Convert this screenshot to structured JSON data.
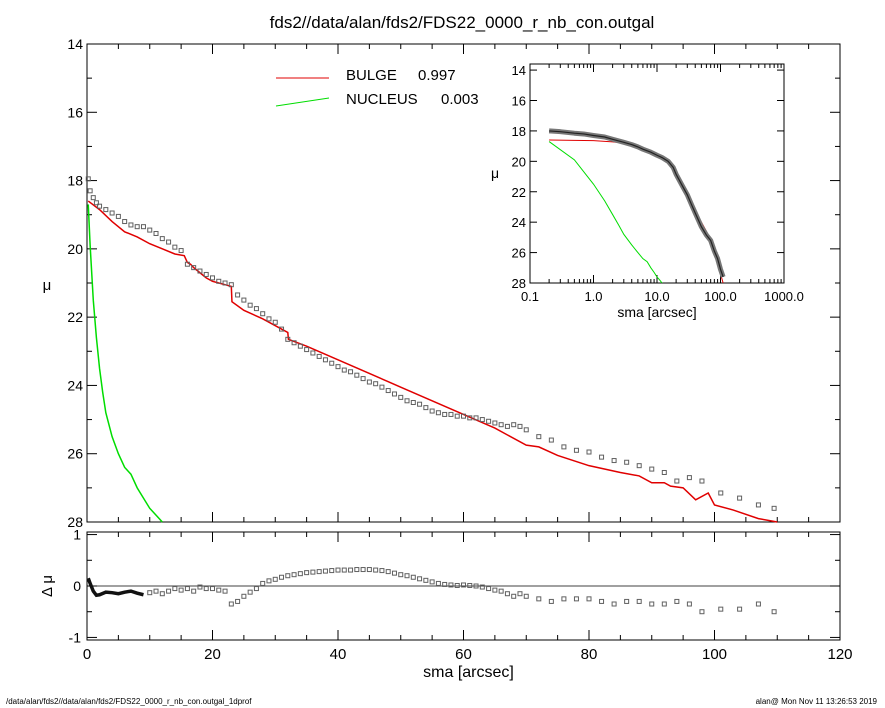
{
  "title": "fds2//data/alan/fds2/FDS22_0000_r_nb_con.outgal",
  "footer": {
    "left": "/data/alan/fds2//data/alan/fds2/FDS22_0000_r_nb_con.outgal_1dprof",
    "right": "alan@  Mon Nov 11 13:26:53 2019"
  },
  "colors": {
    "bulge": "#e00000",
    "nucleus": "#00dd00",
    "data": "#606060",
    "axis": "#000000"
  },
  "chart_data": [
    {
      "type": "line",
      "panel": "main",
      "xlabel": "sma [arcsec]",
      "ylabel": "μ",
      "xlim": [
        0,
        120
      ],
      "ylim": [
        28,
        14
      ],
      "y_inverted": true,
      "xticks": [
        "0",
        "20",
        "40",
        "60",
        "80",
        "100",
        "120"
      ],
      "yticks": [
        "14",
        "16",
        "18",
        "20",
        "22",
        "24",
        "26",
        "28"
      ],
      "legend": [
        {
          "label": "BULGE",
          "value": "0.997",
          "color": "#e00000"
        },
        {
          "label": "NUCLEUS",
          "value": "0.003",
          "color": "#00dd00"
        }
      ],
      "series": [
        {
          "name": "BULGE",
          "x": [
            0.2,
            2,
            4,
            6,
            8,
            10,
            12,
            14,
            15.5,
            16,
            16.5,
            17,
            18,
            19,
            20,
            21,
            22,
            23,
            23.1,
            25,
            28,
            31,
            32,
            32.1,
            35,
            40,
            45,
            50,
            55,
            60,
            65,
            70,
            72,
            75,
            80,
            85,
            88,
            90,
            92,
            93,
            95,
            97,
            99,
            100,
            103,
            107,
            110
          ],
          "y": [
            18.6,
            18.85,
            19.2,
            19.5,
            19.65,
            19.85,
            20.0,
            20.15,
            20.2,
            20.4,
            20.45,
            20.55,
            20.7,
            20.85,
            20.95,
            21.0,
            21.05,
            21.1,
            21.55,
            21.8,
            22.05,
            22.35,
            22.45,
            22.65,
            22.85,
            23.25,
            23.65,
            24.05,
            24.45,
            24.85,
            25.25,
            25.75,
            25.8,
            26.05,
            26.35,
            26.55,
            26.65,
            26.85,
            26.85,
            26.95,
            27.0,
            27.35,
            27.15,
            27.5,
            27.65,
            27.9,
            28.0
          ]
        },
        {
          "name": "NUCLEUS",
          "x": [
            0.2,
            0.5,
            1,
            1.5,
            2,
            2.5,
            3,
            4,
            5,
            6,
            7,
            8,
            9,
            10,
            11,
            12
          ],
          "y": [
            18.7,
            19.9,
            21.5,
            22.6,
            23.5,
            24.2,
            24.8,
            25.5,
            26.0,
            26.4,
            26.6,
            27.0,
            27.3,
            27.6,
            27.8,
            28.0
          ]
        },
        {
          "name": "data",
          "x": [
            0.2,
            0.5,
            1,
            1.5,
            2,
            3,
            4,
            5,
            6,
            7,
            8,
            9,
            10,
            11,
            12,
            13,
            14,
            15,
            16,
            17,
            18,
            19,
            20,
            21,
            22,
            23,
            24,
            25,
            26,
            27,
            28,
            29,
            30,
            31,
            32,
            33,
            34,
            35,
            36,
            37,
            38,
            39,
            40,
            41,
            42,
            43,
            44,
            45,
            46,
            47,
            48,
            49,
            50,
            51,
            52,
            53,
            54,
            55,
            56,
            57,
            58,
            59,
            60,
            61,
            62,
            63,
            64,
            65,
            66,
            67,
            68,
            69,
            70,
            72,
            74,
            76,
            78,
            80,
            82,
            84,
            86,
            88,
            90,
            92,
            94,
            96,
            98,
            101,
            104,
            107,
            109.5
          ],
          "y": [
            17.95,
            18.3,
            18.5,
            18.65,
            18.75,
            18.85,
            18.95,
            19.05,
            19.2,
            19.3,
            19.35,
            19.35,
            19.45,
            19.55,
            19.7,
            19.8,
            19.95,
            20.05,
            20.45,
            20.55,
            20.65,
            20.75,
            20.85,
            20.95,
            21.0,
            21.05,
            21.35,
            21.5,
            21.65,
            21.75,
            21.9,
            22.05,
            22.15,
            22.35,
            22.65,
            22.75,
            22.85,
            22.95,
            23.05,
            23.15,
            23.25,
            23.35,
            23.45,
            23.55,
            23.6,
            23.7,
            23.8,
            23.9,
            23.95,
            24.05,
            24.15,
            24.25,
            24.35,
            24.45,
            24.5,
            24.55,
            24.65,
            24.75,
            24.8,
            24.85,
            24.85,
            24.9,
            24.9,
            24.95,
            24.95,
            25.0,
            25.05,
            25.1,
            25.15,
            25.2,
            25.15,
            25.2,
            25.3,
            25.5,
            25.6,
            25.8,
            25.9,
            25.95,
            26.1,
            26.2,
            26.25,
            26.35,
            26.45,
            26.55,
            26.8,
            26.7,
            26.8,
            27.15,
            27.3,
            27.5,
            27.6
          ]
        }
      ]
    },
    {
      "type": "line",
      "panel": "residual",
      "xlabel": "sma [arcsec]",
      "ylabel": "Δ μ",
      "xlim": [
        0,
        120
      ],
      "ylim": [
        -1,
        1
      ],
      "yticks": [
        "-1",
        "0",
        "1"
      ],
      "reference_line": 0,
      "series": [
        {
          "name": "residual",
          "x": [
            0.2,
            0.5,
            1,
            1.5,
            2,
            3,
            4,
            5,
            6,
            7,
            8,
            9,
            10,
            11,
            12,
            13,
            14,
            15,
            16,
            17,
            18,
            19,
            20,
            21,
            22,
            23,
            24,
            25,
            26,
            27,
            28,
            29,
            30,
            31,
            32,
            33,
            34,
            35,
            36,
            37,
            38,
            39,
            40,
            41,
            42,
            43,
            44,
            45,
            46,
            47,
            48,
            49,
            50,
            51,
            52,
            53,
            54,
            55,
            56,
            57,
            58,
            59,
            60,
            61,
            62,
            63,
            64,
            65,
            66,
            67,
            68,
            69,
            70,
            72,
            74,
            76,
            78,
            80,
            82,
            84,
            86,
            88,
            90,
            92,
            94,
            96,
            98,
            101,
            104,
            107,
            109.5
          ],
          "y": [
            0.15,
            0.05,
            -0.1,
            -0.18,
            -0.17,
            -0.12,
            -0.13,
            -0.15,
            -0.12,
            -0.1,
            -0.14,
            -0.17,
            -0.13,
            -0.1,
            -0.15,
            -0.1,
            -0.05,
            -0.08,
            -0.05,
            -0.1,
            -0.02,
            -0.05,
            -0.05,
            -0.08,
            -0.1,
            -0.35,
            -0.3,
            -0.2,
            -0.12,
            -0.05,
            0.05,
            0.1,
            0.13,
            0.17,
            0.2,
            0.22,
            0.24,
            0.26,
            0.27,
            0.28,
            0.29,
            0.3,
            0.31,
            0.31,
            0.31,
            0.32,
            0.32,
            0.32,
            0.31,
            0.3,
            0.28,
            0.25,
            0.22,
            0.2,
            0.17,
            0.14,
            0.11,
            0.08,
            0.05,
            0.03,
            0.02,
            0.01,
            0.02,
            0.01,
            0.0,
            -0.02,
            -0.05,
            -0.08,
            -0.1,
            -0.15,
            -0.2,
            -0.15,
            -0.2,
            -0.25,
            -0.3,
            -0.25,
            -0.25,
            -0.25,
            -0.3,
            -0.35,
            -0.3,
            -0.3,
            -0.35,
            -0.35,
            -0.3,
            -0.35,
            -0.5,
            -0.45,
            -0.45,
            -0.35,
            -0.5
          ]
        }
      ]
    },
    {
      "type": "line",
      "panel": "inset",
      "xlabel": "sma [arcsec]",
      "ylabel": "μ",
      "xscale": "log",
      "xlim": [
        0.1,
        1000
      ],
      "ylim": [
        28,
        14
      ],
      "y_inverted": true,
      "xticks": [
        "0.1",
        "1.0",
        "10.0",
        "100.0",
        "1000.0"
      ],
      "yticks": [
        "14",
        "16",
        "18",
        "20",
        "22",
        "24",
        "26",
        "28"
      ],
      "series": [
        {
          "name": "BULGE",
          "x": [
            0.2,
            0.5,
            1,
            2,
            3,
            5,
            8,
            10,
            15,
            20,
            30,
            40,
            50,
            60,
            70,
            80,
            90,
            100,
            110
          ],
          "y": [
            18.6,
            18.62,
            18.64,
            18.72,
            18.8,
            19.0,
            19.3,
            19.55,
            20.0,
            20.95,
            22.3,
            23.3,
            24.0,
            24.6,
            25.3,
            26.0,
            26.7,
            27.4,
            28.0
          ]
        },
        {
          "name": "NUCLEUS",
          "x": [
            0.2,
            0.5,
            1,
            1.5,
            2,
            2.5,
            3,
            4,
            5,
            6,
            7,
            8,
            9,
            10,
            11,
            12
          ],
          "y": [
            18.7,
            19.9,
            21.5,
            22.6,
            23.5,
            24.2,
            24.8,
            25.5,
            26.0,
            26.4,
            26.6,
            27.0,
            27.3,
            27.6,
            27.8,
            28.0
          ]
        },
        {
          "name": "data",
          "x": [
            0.2,
            0.3,
            0.5,
            0.7,
            1,
            1.5,
            2,
            3,
            4,
            5,
            6,
            8,
            10,
            12,
            15,
            18,
            20,
            25,
            30,
            35,
            40,
            50,
            60,
            70,
            80,
            90,
            100,
            110
          ],
          "y": [
            18.0,
            18.05,
            18.15,
            18.2,
            18.3,
            18.4,
            18.55,
            18.75,
            18.9,
            19.05,
            19.2,
            19.4,
            19.6,
            19.75,
            20.0,
            20.4,
            20.85,
            21.6,
            22.2,
            22.85,
            23.4,
            24.3,
            24.85,
            25.2,
            25.9,
            26.4,
            27.1,
            27.6
          ]
        }
      ]
    }
  ]
}
